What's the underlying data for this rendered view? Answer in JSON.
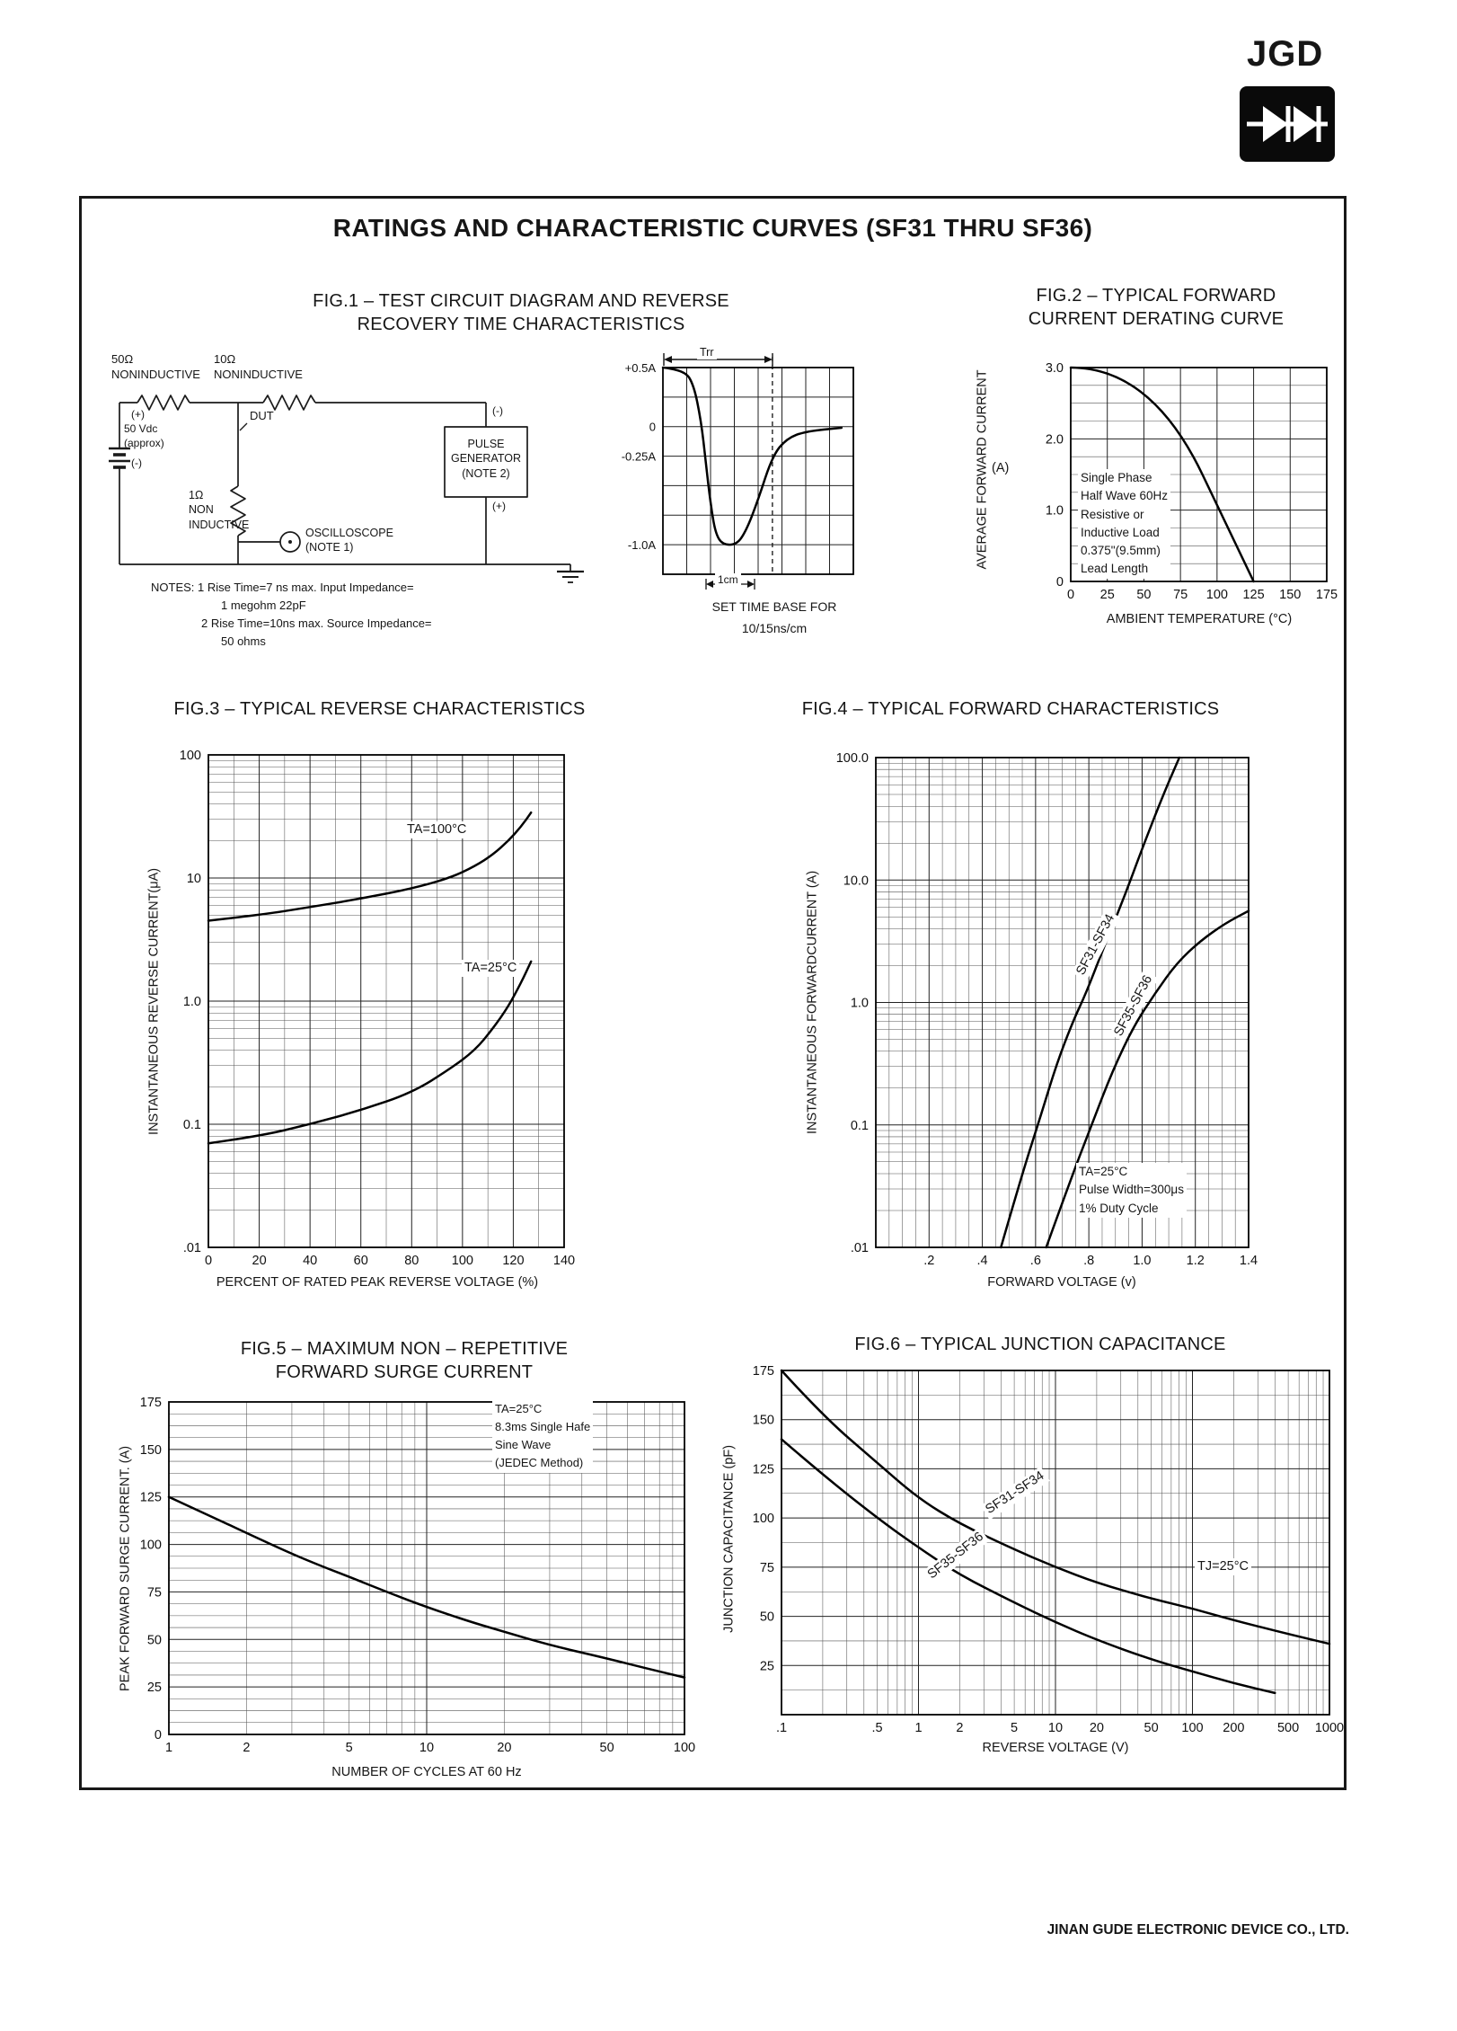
{
  "page": {
    "logo_text": "JGD",
    "title": "RATINGS AND CHARACTERISTIC CURVES (SF31 THRU SF36)",
    "footer": "JINAN GUDE ELECTRONIC DEVICE CO., LTD."
  },
  "fig1": {
    "title1": "FIG.1 – TEST CIRCUIT DIAGRAM AND REVERSE",
    "title2": "RECOVERY TIME CHARACTERISTICS",
    "circuit": {
      "r1": "50Ω\nNONINDUCTIVE",
      "r2": "10Ω\nNONINDUCTIVE",
      "supply_plus": "(+)",
      "supply": "50 Vdc\n(approx)",
      "supply_minus": "(-)",
      "dut": "DUT",
      "shunt": "1Ω\nNON\nINDUCTIVE",
      "scope": "OSCILLOSCOPE\n(NOTE 1)",
      "pulse_gen": "PULSE\nGENERATOR\n(NOTE 2)",
      "gen_minus": "(-)",
      "gen_plus": "(+)"
    },
    "notes": [
      "NOTES: 1 Rise Time=7 ns max. Input Impedance=",
      "1 megohm 22pF",
      "2 Rise Time=10ns max. Source Impedance=",
      "50 ohms"
    ],
    "trr": "Trr",
    "cm": "1cm",
    "timebase1": "SET TIME BASE FOR",
    "timebase2": "10/15ns/cm"
  },
  "fig2": {
    "title1": "FIG.2 – TYPICAL FORWARD",
    "title2": "CURRENT DERATING CURVE",
    "ylabel": "AVERAGE FORWARD CURRENT",
    "ylabel_unit": "(A)",
    "xlabel": "AMBIENT TEMPERATURE (°C)",
    "annotation": "Single Phase\nHalf Wave 60Hz\nResistive or\nInductive Load\n0.375\"(9.5mm)\nLead Length"
  },
  "fig3": {
    "title": "FIG.3 – TYPICAL REVERSE CHARACTERISTICS",
    "ylabel": "INSTANTANEOUS REVERSE CURRENT(μA)",
    "xlabel": "PERCENT OF RATED PEAK REVERSE VOLTAGE (%)",
    "curve1": "TA=100°C",
    "curve2": "TA=25°C"
  },
  "fig4": {
    "title": "FIG.4 – TYPICAL FORWARD CHARACTERISTICS",
    "ylabel": "INSTANTANEOUS FORWARDCURRENT (A)",
    "xlabel": "FORWARD VOLTAGE (v)",
    "curve1": "SF31-SF34",
    "curve2": "SF35-SF36",
    "annotation": "TA=25°C\nPulse Width=300μs\n1% Duty Cycle"
  },
  "fig5": {
    "title1": "FIG.5 – MAXIMUM NON – REPETITIVE",
    "title2": "FORWARD SURGE CURRENT",
    "ylabel": "PEAK FORWARD SURGE CURRENT. (A)",
    "xlabel": "NUMBER OF CYCLES AT 60 Hz",
    "annotation": "TA=25°C\n8.3ms Single Hafe\nSine Wave\n(JEDEC Method)"
  },
  "fig6": {
    "title": "FIG.6 – TYPICAL JUNCTION CAPACITANCE",
    "ylabel": "JUNCTION CAPACITANCE (pF)",
    "xlabel": "REVERSE VOLTAGE (V)",
    "curve1": "SF31-SF34",
    "curve2": "SF35-SF36",
    "temp": "TJ=25°C"
  },
  "chart_data": {
    "fig1_scope": {
      "type": "line",
      "x": {
        "type": "linear",
        "min": 0,
        "max": 8,
        "major": 1
      },
      "y": {
        "type": "linear",
        "min": -1.25,
        "max": 0.5,
        "major": 0.25,
        "ticks": [
          [
            0.5,
            "+0.5A"
          ],
          [
            0,
            "0"
          ],
          [
            -0.25,
            "-0.25A"
          ],
          [
            -1,
            "-1.0A"
          ]
        ]
      },
      "dashx": [
        4.6
      ],
      "series": [
        {
          "name": "reverse-recovery-current",
          "points": [
            [
              0,
              0.5
            ],
            [
              0.9,
              0.48
            ],
            [
              1.3,
              0.35
            ],
            [
              1.6,
              0.05
            ],
            [
              1.8,
              -0.3
            ],
            [
              2,
              -0.65
            ],
            [
              2.2,
              -0.9
            ],
            [
              2.5,
              -1
            ],
            [
              3.1,
              -1
            ],
            [
              3.5,
              -0.88
            ],
            [
              4,
              -0.62
            ],
            [
              4.6,
              -0.25
            ],
            [
              5.2,
              -0.1
            ],
            [
              6,
              -0.04
            ],
            [
              7.5,
              -0.01
            ]
          ]
        }
      ]
    },
    "fig2": {
      "type": "line",
      "title": "FIG.2 – TYPICAL FORWARD CURRENT DERATING CURVE",
      "xlabel": "AMBIENT TEMPERATURE (°C)",
      "ylabel": "AVERAGE FORWARD CURRENT (A)",
      "x": {
        "type": "linear",
        "min": 0,
        "max": 175,
        "major": 25,
        "ticks": [
          [
            0,
            "0"
          ],
          [
            25,
            "25"
          ],
          [
            50,
            "50"
          ],
          [
            75,
            "75"
          ],
          [
            100,
            "100"
          ],
          [
            125,
            "125"
          ],
          [
            150,
            "150"
          ],
          [
            175,
            "175"
          ]
        ]
      },
      "y": {
        "type": "linear",
        "min": 0,
        "max": 3,
        "major": 1,
        "minor": 0.25,
        "ticks": [
          [
            3,
            "3.0"
          ],
          [
            2,
            "2.0"
          ],
          [
            1,
            "1.0"
          ],
          [
            0,
            "0"
          ]
        ]
      },
      "series": [
        {
          "name": "derating-curve",
          "points": [
            [
              0,
              3
            ],
            [
              55,
              3
            ],
            [
              125,
              0
            ]
          ]
        }
      ]
    },
    "fig3": {
      "type": "line",
      "title": "FIG.3 – TYPICAL REVERSE CHARACTERISTICS",
      "xlabel": "PERCENT OF RATED PEAK REVERSE VOLTAGE (%)",
      "ylabel": "INSTANTANEOUS REVERSE CURRENT (μA)",
      "x": {
        "type": "linear",
        "min": 0,
        "max": 140,
        "major": 20,
        "minor": 10,
        "ticks": [
          [
            0,
            "0"
          ],
          [
            20,
            "20"
          ],
          [
            40,
            "40"
          ],
          [
            60,
            "60"
          ],
          [
            80,
            "80"
          ],
          [
            100,
            "100"
          ],
          [
            120,
            "120"
          ],
          [
            140,
            "140"
          ]
        ]
      },
      "y": {
        "type": "log",
        "min": 0.01,
        "max": 100,
        "ticks": [
          [
            100,
            "100"
          ],
          [
            10,
            "10"
          ],
          [
            1,
            "1.0"
          ],
          [
            0.1,
            "0.1"
          ],
          [
            0.01,
            ".01"
          ]
        ]
      },
      "series": [
        {
          "name": "TA=100°C",
          "points": [
            [
              0,
              4.5
            ],
            [
              20,
              5
            ],
            [
              40,
              5.8
            ],
            [
              60,
              6.8
            ],
            [
              80,
              8.2
            ],
            [
              95,
              10
            ],
            [
              105,
              12.5
            ],
            [
              112,
              15.5
            ],
            [
              118,
              20
            ],
            [
              123,
              26
            ],
            [
              127,
              34
            ]
          ]
        },
        {
          "name": "TA=25°C",
          "points": [
            [
              0,
              0.07
            ],
            [
              20,
              0.08
            ],
            [
              40,
              0.1
            ],
            [
              60,
              0.13
            ],
            [
              80,
              0.18
            ],
            [
              95,
              0.28
            ],
            [
              105,
              0.4
            ],
            [
              112,
              0.6
            ],
            [
              118,
              0.9
            ],
            [
              123,
              1.4
            ],
            [
              127,
              2.1
            ]
          ]
        }
      ]
    },
    "fig4": {
      "type": "line",
      "title": "FIG.4 – TYPICAL FORWARD CHARACTERISTICS",
      "xlabel": "FORWARD VOLTAGE (v)",
      "ylabel": "INSTANTANEOUS FORWARD CURRENT (A)",
      "x": {
        "type": "linear",
        "min": 0,
        "max": 1.4,
        "major": 0.2,
        "minor": 0.05,
        "ticks": [
          [
            0.2,
            ".2"
          ],
          [
            0.4,
            ".4"
          ],
          [
            0.6,
            ".6"
          ],
          [
            0.8,
            ".8"
          ],
          [
            1,
            "1.0"
          ],
          [
            1.2,
            "1.2"
          ],
          [
            1.4,
            "1.4"
          ]
        ]
      },
      "y": {
        "type": "log",
        "min": 0.01,
        "max": 100,
        "ticks": [
          [
            100,
            "100.0"
          ],
          [
            10,
            "10.0"
          ],
          [
            1,
            "1.0"
          ],
          [
            0.1,
            "0.1"
          ],
          [
            0.01,
            ".01"
          ]
        ]
      },
      "series": [
        {
          "name": "SF31-SF34",
          "points": [
            [
              0.47,
              0.01
            ],
            [
              0.55,
              0.04
            ],
            [
              0.62,
              0.12
            ],
            [
              0.68,
              0.32
            ],
            [
              0.74,
              0.7
            ],
            [
              0.79,
              1.2
            ],
            [
              0.85,
              2.6
            ],
            [
              0.93,
              7
            ],
            [
              1,
              18
            ],
            [
              1.08,
              50
            ],
            [
              1.14,
              100
            ]
          ]
        },
        {
          "name": "SF35-SF36",
          "points": [
            [
              0.64,
              0.01
            ],
            [
              0.73,
              0.035
            ],
            [
              0.81,
              0.1
            ],
            [
              0.89,
              0.28
            ],
            [
              0.97,
              0.65
            ],
            [
              1.05,
              1.2
            ],
            [
              1.13,
              2.1
            ],
            [
              1.22,
              3.2
            ],
            [
              1.31,
              4.4
            ],
            [
              1.4,
              5.6
            ]
          ]
        }
      ]
    },
    "fig5": {
      "type": "line",
      "title": "FIG.5 – MAXIMUM NON-REPETITIVE FORWARD SURGE CURRENT",
      "xlabel": "NUMBER OF CYCLES AT 60 Hz",
      "ylabel": "PEAK FORWARD SURGE CURRENT. (A)",
      "x": {
        "type": "log",
        "min": 1,
        "max": 100,
        "ticks": [
          [
            1,
            "1"
          ],
          [
            2,
            "2"
          ],
          [
            5,
            "5"
          ],
          [
            10,
            "10"
          ],
          [
            20,
            "20"
          ],
          [
            50,
            "50"
          ],
          [
            100,
            "100"
          ]
        ]
      },
      "y": {
        "type": "linear",
        "min": 0,
        "max": 175,
        "major": 25,
        "minor": 6.25,
        "ticks": [
          [
            175,
            "175"
          ],
          [
            150,
            "150"
          ],
          [
            125,
            "125"
          ],
          [
            100,
            "100"
          ],
          [
            75,
            "75"
          ],
          [
            50,
            "50"
          ],
          [
            25,
            "25"
          ],
          [
            0,
            "0"
          ]
        ]
      },
      "series": [
        {
          "name": "surge-current",
          "points": [
            [
              1,
              125
            ],
            [
              1.5,
              114
            ],
            [
              2,
              106
            ],
            [
              3,
              95
            ],
            [
              4,
              88
            ],
            [
              5,
              83
            ],
            [
              7,
              75
            ],
            [
              10,
              67
            ],
            [
              15,
              59
            ],
            [
              20,
              54
            ],
            [
              30,
              47
            ],
            [
              50,
              40
            ],
            [
              70,
              35
            ],
            [
              100,
              30
            ]
          ]
        }
      ]
    },
    "fig6": {
      "type": "line",
      "title": "FIG.6 – TYPICAL JUNCTION CAPACITANCE",
      "xlabel": "REVERSE VOLTAGE (V)",
      "ylabel": "JUNCTION CAPACITANCE (pF)",
      "x": {
        "type": "log",
        "min": 0.1,
        "max": 1000,
        "ticks": [
          [
            0.1,
            ".1"
          ],
          [
            0.5,
            ".5"
          ],
          [
            1,
            "1"
          ],
          [
            2,
            "2"
          ],
          [
            5,
            "5"
          ],
          [
            10,
            "10"
          ],
          [
            20,
            "20"
          ],
          [
            50,
            "50"
          ],
          [
            100,
            "100"
          ],
          [
            200,
            "200"
          ],
          [
            500,
            "500"
          ],
          [
            1000,
            "1000"
          ]
        ]
      },
      "y": {
        "type": "linear",
        "min": 0,
        "max": 175,
        "major": 25,
        "minor": 12.5,
        "ticks": [
          [
            175,
            "175"
          ],
          [
            150,
            "150"
          ],
          [
            125,
            "125"
          ],
          [
            100,
            "100"
          ],
          [
            75,
            "75"
          ],
          [
            50,
            "50"
          ],
          [
            25,
            "25"
          ]
        ]
      },
      "series": [
        {
          "name": "SF31-SF34",
          "points": [
            [
              0.1,
              175
            ],
            [
              0.2,
              152
            ],
            [
              0.5,
              128
            ],
            [
              1,
              110
            ],
            [
              2,
              97
            ],
            [
              5,
              84
            ],
            [
              10,
              75
            ],
            [
              20,
              67
            ],
            [
              50,
              59
            ],
            [
              100,
              54
            ],
            [
              200,
              48
            ],
            [
              500,
              41
            ],
            [
              1000,
              36
            ]
          ]
        },
        {
          "name": "SF35-SF36",
          "points": [
            [
              0.1,
              140
            ],
            [
              0.2,
              122
            ],
            [
              0.5,
              100
            ],
            [
              1,
              85
            ],
            [
              2,
              71
            ],
            [
              5,
              57
            ],
            [
              10,
              47
            ],
            [
              20,
              38
            ],
            [
              50,
              28
            ],
            [
              100,
              22
            ],
            [
              200,
              16
            ],
            [
              400,
              11
            ]
          ]
        }
      ]
    }
  }
}
